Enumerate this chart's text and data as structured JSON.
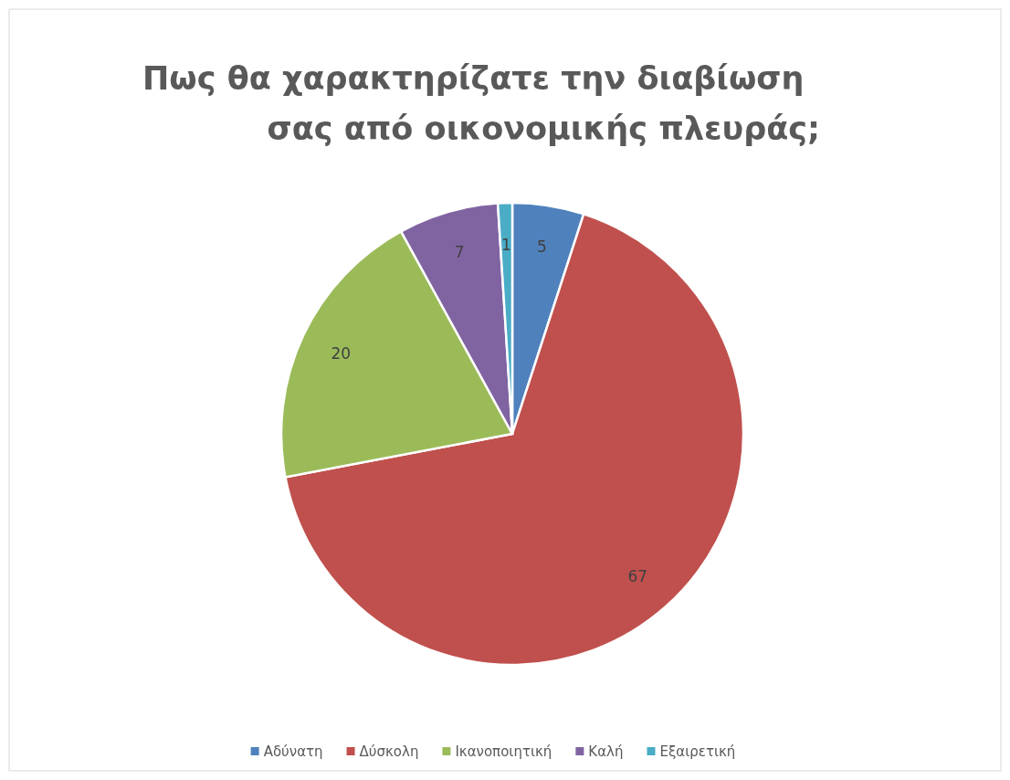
{
  "chart_data": {
    "type": "pie",
    "title": "Πως θα χαρακτηρίζατε την διαβίωση σας από οικονομικής πλευράς;",
    "categories": [
      "Αδύνατη",
      "Δύσκολη",
      "Ικανοποιητική",
      "Καλή",
      "Εξαιρετική"
    ],
    "values": [
      5,
      67,
      20,
      7,
      1
    ],
    "colors": [
      "#4f81bd",
      "#c0504d",
      "#9bbb59",
      "#8064a2",
      "#4bacc6"
    ],
    "data_labels": true,
    "legend": "bottom"
  }
}
